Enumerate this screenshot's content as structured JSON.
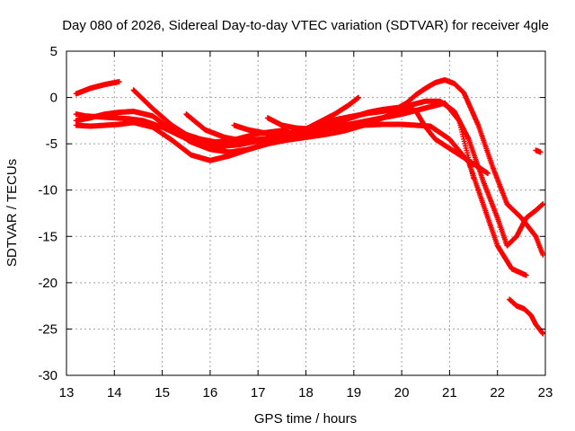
{
  "chart_data": {
    "type": "scatter",
    "title": "Day 080 of 2026, Sidereal Day-to-day VTEC variation (SDTVAR) for receiver 4gle",
    "xlabel": "GPS time / hours",
    "ylabel": "SDTVAR / TECUs",
    "xlim": [
      13,
      23
    ],
    "ylim": [
      -30,
      5
    ],
    "xticks": [
      13,
      14,
      15,
      16,
      17,
      18,
      19,
      20,
      21,
      22,
      23
    ],
    "yticks": [
      5,
      0,
      -5,
      -10,
      -15,
      -20,
      -25,
      -30
    ],
    "xtick_labels": [
      "13",
      "14",
      "15",
      "16",
      "17",
      "18",
      "19",
      "20",
      "21",
      "22",
      "23"
    ],
    "ytick_labels": [
      "5",
      "0",
      "-5",
      "-10",
      "-15",
      "-20",
      "-25",
      "-30"
    ],
    "grid": true,
    "marker": "+",
    "color": "#ff0000",
    "series": [
      {
        "name": "track-1",
        "x": [
          13.2,
          13.5,
          13.8,
          14.1
        ],
        "y": [
          0.4,
          1.0,
          1.4,
          1.7
        ]
      },
      {
        "name": "track-2",
        "x": [
          14.4,
          14.8,
          15.2,
          15.5,
          15.8,
          16.1,
          16.4,
          16.7,
          17.0,
          17.3,
          17.6
        ],
        "y": [
          0.8,
          -1.2,
          -3.0,
          -4.0,
          -4.5,
          -4.8,
          -4.7,
          -4.3,
          -3.9,
          -3.7,
          -3.5
        ]
      },
      {
        "name": "track-3",
        "x": [
          13.2,
          13.4,
          13.7,
          14.0,
          14.3,
          14.6,
          15.0,
          15.4,
          15.8,
          16.2,
          16.6,
          17.0,
          17.5,
          18.0,
          18.4,
          18.8,
          19.2,
          19.6,
          20.0,
          20.3,
          20.6,
          20.9,
          21.2,
          21.5
        ],
        "y": [
          -1.8,
          -2.0,
          -2.1,
          -2.2,
          -2.3,
          -2.5,
          -3.2,
          -4.2,
          -5.0,
          -5.3,
          -5.1,
          -4.7,
          -4.3,
          -3.9,
          -3.5,
          -3.0,
          -2.6,
          -2.2,
          -1.8,
          -1.4,
          -1.0,
          -0.6,
          -2.5,
          -8.7
        ]
      },
      {
        "name": "track-4",
        "x": [
          13.2,
          13.5,
          13.8,
          14.1,
          14.4,
          14.8,
          15.2,
          15.6,
          16.0,
          16.4,
          16.8,
          17.2,
          17.6,
          18.0,
          18.4,
          18.8,
          19.2,
          19.6,
          20.0,
          20.3,
          20.6,
          21.0,
          21.4,
          21.7,
          22.0,
          22.3,
          22.6
        ],
        "y": [
          -2.5,
          -2.2,
          -1.8,
          -1.6,
          -1.5,
          -2.0,
          -3.5,
          -4.8,
          -5.6,
          -5.9,
          -5.6,
          -5.0,
          -4.4,
          -4.0,
          -3.6,
          -3.3,
          -3.0,
          -2.9,
          -2.9,
          -3.0,
          -3.1,
          -4.5,
          -7.0,
          -11.5,
          -16.0,
          -18.5,
          -19.2
        ]
      },
      {
        "name": "track-5",
        "x": [
          13.2,
          13.5,
          13.8,
          14.1,
          14.4,
          14.8,
          15.2,
          15.6,
          16.0,
          16.4,
          16.8,
          17.2,
          17.6,
          18.0,
          18.4,
          18.8,
          19.2,
          19.6,
          20.0,
          20.2,
          20.5,
          20.8,
          21.1,
          21.4,
          21.7,
          22.0,
          22.2,
          22.4,
          22.6,
          22.8,
          22.95
        ],
        "y": [
          -3.0,
          -3.1,
          -3.0,
          -2.9,
          -2.7,
          -3.2,
          -4.6,
          -6.2,
          -6.8,
          -6.3,
          -5.6,
          -5.0,
          -4.6,
          -4.3,
          -4.0,
          -3.6,
          -3.0,
          -2.2,
          -1.4,
          -0.8,
          -0.4,
          -0.4,
          -1.5,
          -4.5,
          -9.0,
          -13.0,
          -16.0,
          -15.0,
          -13.0,
          -12.2,
          -11.5
        ]
      },
      {
        "name": "track-6",
        "x": [
          15.5,
          15.9,
          16.3,
          16.6,
          16.9,
          17.2,
          17.5,
          17.8,
          18.1,
          18.4,
          18.7,
          19.0,
          19.3,
          19.6,
          19.9,
          20.1,
          20.3,
          20.5,
          20.7,
          20.9,
          21.1,
          21.3,
          21.6,
          21.9,
          22.2,
          22.5,
          22.8,
          22.95
        ],
        "y": [
          -1.8,
          -3.5,
          -4.3,
          -4.6,
          -4.6,
          -4.4,
          -4.1,
          -3.7,
          -3.2,
          -2.7,
          -2.3,
          -2.0,
          -1.7,
          -1.5,
          -1.2,
          -0.6,
          0.3,
          1.0,
          1.6,
          1.9,
          1.5,
          0.5,
          -3.0,
          -7.5,
          -11.5,
          -13.0,
          -15.0,
          -17.0
        ]
      },
      {
        "name": "track-7",
        "x": [
          16.5,
          16.8,
          17.1,
          17.4,
          17.7,
          18.0,
          18.3,
          18.6,
          18.9,
          19.1
        ],
        "y": [
          -3.0,
          -3.5,
          -3.8,
          -3.9,
          -3.8,
          -3.4,
          -2.6,
          -1.8,
          -0.8,
          0.0
        ]
      },
      {
        "name": "track-8",
        "x": [
          17.2,
          17.5,
          17.8,
          18.1,
          18.4,
          18.7,
          19.0,
          19.3,
          19.6,
          19.9,
          20.1,
          20.3,
          20.5,
          20.7,
          21.0,
          21.3,
          21.6,
          21.8
        ],
        "y": [
          -2.2,
          -3.0,
          -3.3,
          -3.4,
          -3.0,
          -2.6,
          -2.1,
          -1.6,
          -1.3,
          -1.1,
          -1.0,
          -1.5,
          -3.2,
          -4.5,
          -5.5,
          -6.5,
          -7.5,
          -8.2
        ]
      },
      {
        "name": "track-9",
        "x": [
          22.25,
          22.4,
          22.55,
          22.7,
          22.8,
          22.95
        ],
        "y": [
          -21.8,
          -22.5,
          -22.8,
          -23.5,
          -24.5,
          -25.5
        ]
      },
      {
        "name": "track-10",
        "x": [
          22.8,
          22.9
        ],
        "y": [
          -5.7,
          -5.9
        ]
      }
    ]
  }
}
